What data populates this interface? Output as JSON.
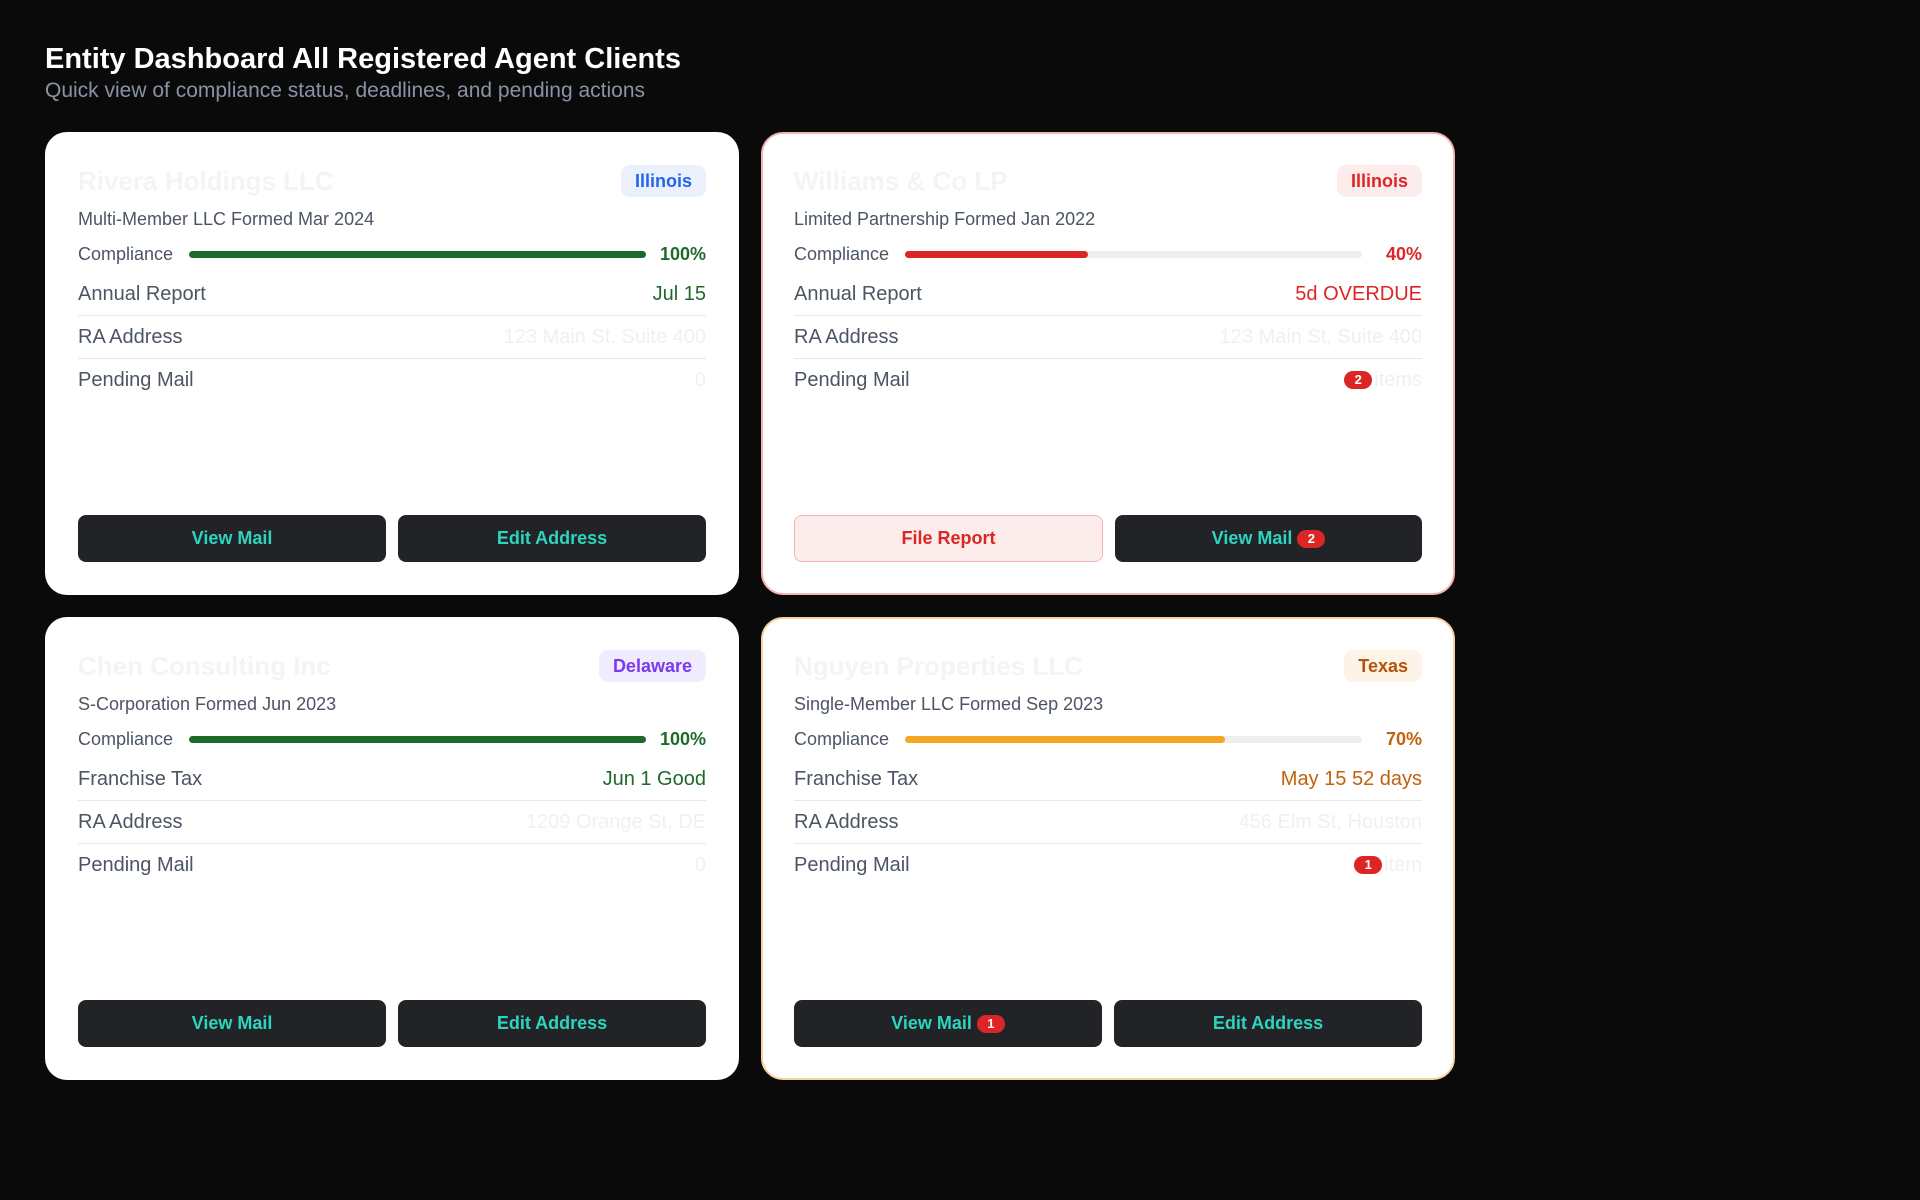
{
  "header": {
    "title": "Entity Dashboard All Registered Agent Clients",
    "subtitle": "Quick view of compliance status, deadlines, and pending actions"
  },
  "compliance_label": "Compliance",
  "entities": [
    {
      "name": "Rivera Holdings LLC",
      "state": "Illinois",
      "state_color": "#2563eb",
      "state_bg": "#eaf1fd",
      "tone": "normal",
      "info": "Multi-Member LLC Formed Mar 2024",
      "compliance_pct": 100,
      "compliance_text": "100%",
      "compliance_color": "#1f6a2a",
      "deadline_label": "Annual Report",
      "deadline_value": "Jul 15",
      "deadline_color": "#1f6a2a",
      "ra_label": "RA Address",
      "ra_value": "123 Main St, Suite 400",
      "mail_label": "Pending Mail",
      "mail_count": "",
      "mail_value": "0",
      "actions": [
        {
          "label": "View Mail",
          "badge": "",
          "style": "dark"
        },
        {
          "label": "Edit Address",
          "badge": "",
          "style": "dark"
        }
      ]
    },
    {
      "name": "Williams & Co LP",
      "state": "Illinois",
      "state_color": "#dc2626",
      "state_bg": "#fdecec",
      "tone": "danger",
      "info": "Limited Partnership Formed Jan 2022",
      "compliance_pct": 40,
      "compliance_text": "40%",
      "compliance_color": "#dc2626",
      "deadline_label": "Annual Report",
      "deadline_value": "5d OVERDUE",
      "deadline_color": "#dc2626",
      "ra_label": "RA Address",
      "ra_value": "123 Main St, Suite 400",
      "mail_label": "Pending Mail",
      "mail_count": "2",
      "mail_value": "items",
      "actions": [
        {
          "label": "File Report",
          "badge": "",
          "style": "danger"
        },
        {
          "label": "View Mail",
          "badge": "2",
          "style": "dark"
        }
      ]
    },
    {
      "name": "Chen Consulting Inc",
      "state": "Delaware",
      "state_color": "#7c3aed",
      "state_bg": "#f1ecfd",
      "tone": "normal",
      "info": "S-Corporation Formed Jun 2023",
      "compliance_pct": 100,
      "compliance_text": "100%",
      "compliance_color": "#1f6a2a",
      "deadline_label": "Franchise Tax",
      "deadline_value": "Jun 1 Good",
      "deadline_color": "#1f6a2a",
      "ra_label": "RA Address",
      "ra_value": "1209 Orange St, DE",
      "mail_label": "Pending Mail",
      "mail_count": "",
      "mail_value": "0",
      "actions": [
        {
          "label": "View Mail",
          "badge": "",
          "style": "dark"
        },
        {
          "label": "Edit Address",
          "badge": "",
          "style": "dark"
        }
      ]
    },
    {
      "name": "Nguyen Properties LLC",
      "state": "Texas",
      "state_color": "#b45309",
      "state_bg": "#fdf3e6",
      "tone": "warning",
      "info": "Single-Member LLC Formed Sep 2023",
      "compliance_pct": 70,
      "compliance_text": "70%",
      "compliance_color": "#c2610c",
      "compliance_fill_color": "#f5a623",
      "deadline_label": "Franchise Tax",
      "deadline_value": "May 15 52 days",
      "deadline_color": "#c2610c",
      "ra_label": "RA Address",
      "ra_value": "456 Elm St, Houston",
      "mail_label": "Pending Mail",
      "mail_count": "1",
      "mail_value": "item",
      "actions": [
        {
          "label": "View Mail",
          "badge": "1",
          "style": "dark"
        },
        {
          "label": "Edit Address",
          "badge": "",
          "style": "dark"
        }
      ]
    }
  ]
}
